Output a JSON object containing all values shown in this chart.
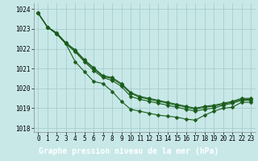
{
  "x": [
    0,
    1,
    2,
    3,
    4,
    5,
    6,
    7,
    8,
    9,
    10,
    11,
    12,
    13,
    14,
    15,
    16,
    17,
    18,
    19,
    20,
    21,
    22,
    23
  ],
  "line1": [
    1023.8,
    1023.1,
    1022.75,
    1022.25,
    1021.35,
    1020.85,
    1020.35,
    1020.25,
    1019.85,
    1019.35,
    1018.95,
    1018.85,
    1018.75,
    1018.65,
    1018.6,
    1018.55,
    1018.45,
    1018.4,
    1018.65,
    1018.85,
    1019.0,
    1019.05,
    1019.3,
    1019.3
  ],
  "line2": [
    1023.8,
    1023.1,
    1022.75,
    1022.25,
    1021.85,
    1021.35,
    1020.9,
    1020.55,
    1020.4,
    1020.1,
    1019.6,
    1019.45,
    1019.35,
    1019.25,
    1019.15,
    1019.05,
    1018.95,
    1018.85,
    1018.95,
    1019.0,
    1019.15,
    1019.25,
    1019.4,
    1019.4
  ],
  "line3": [
    1023.8,
    1023.1,
    1022.8,
    1022.3,
    1021.9,
    1021.4,
    1021.0,
    1020.6,
    1020.5,
    1020.2,
    1019.75,
    1019.55,
    1019.45,
    1019.35,
    1019.25,
    1019.15,
    1019.05,
    1018.95,
    1019.05,
    1019.1,
    1019.2,
    1019.3,
    1019.45,
    1019.45
  ],
  "line4": [
    1023.8,
    1023.1,
    1022.8,
    1022.3,
    1021.95,
    1021.45,
    1021.05,
    1020.65,
    1020.55,
    1020.25,
    1019.8,
    1019.6,
    1019.5,
    1019.4,
    1019.3,
    1019.2,
    1019.1,
    1019.0,
    1019.1,
    1019.15,
    1019.25,
    1019.35,
    1019.5,
    1019.5
  ],
  "bg_color": "#c8e8e8",
  "grid_color": "#a8cccc",
  "line_color": "#1a5c1a",
  "marker_size": 2.5,
  "xlabel": "Graphe pression niveau de la mer (hPa)",
  "ylim": [
    1017.8,
    1024.3
  ],
  "xlim": [
    -0.5,
    23.5
  ],
  "yticks": [
    1018,
    1019,
    1020,
    1021,
    1022,
    1023,
    1024
  ],
  "xticks": [
    0,
    1,
    2,
    3,
    4,
    5,
    6,
    7,
    8,
    9,
    10,
    11,
    12,
    13,
    14,
    15,
    16,
    17,
    18,
    19,
    20,
    21,
    22,
    23
  ],
  "xlabel_bg": "#2d6b2d",
  "xlabel_color": "#ffffff",
  "tick_fontsize": 5.5,
  "xlabel_fontsize": 7.0,
  "linewidth": 0.8
}
